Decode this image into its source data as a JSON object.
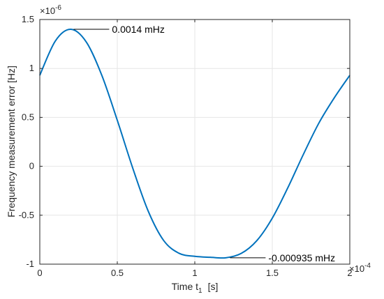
{
  "chart_data": {
    "type": "line",
    "title": "",
    "xlabel": "Time t",
    "xlabel_sub": "1",
    "xlabel_unit": "[s]",
    "ylabel": "Frequency measurement error [Hz]",
    "x_exponent_label": "×10",
    "x_exponent": "-4",
    "y_exponent_label": "×10",
    "y_exponent": "-6",
    "xlim": [
      0,
      2
    ],
    "ylim": [
      -1,
      1.5
    ],
    "x_scale_factor": "1e-4",
    "y_scale_factor": "1e-6",
    "grid": true,
    "x_ticks": [
      0,
      0.5,
      1,
      1.5,
      2
    ],
    "x_tick_labels": [
      "0",
      "0.5",
      "1",
      "1.5",
      "2"
    ],
    "y_ticks": [
      -1,
      -0.5,
      0,
      0.5,
      1,
      1.5
    ],
    "y_tick_labels": [
      "-1",
      "-0.5",
      "0",
      "0.5",
      "1",
      "1.5"
    ],
    "series": [
      {
        "color": "#0072BD",
        "x": [
          0.0,
          0.1,
          0.2,
          0.3,
          0.4,
          0.5,
          0.6,
          0.7,
          0.8,
          0.9,
          1.0,
          1.1,
          1.2,
          1.3,
          1.4,
          1.5,
          1.6,
          1.7,
          1.8,
          1.9,
          2.0
        ],
        "y": [
          0.93,
          1.28,
          1.4,
          1.27,
          0.93,
          0.47,
          -0.02,
          -0.46,
          -0.76,
          -0.89,
          -0.92,
          -0.93,
          -0.935,
          -0.89,
          -0.76,
          -0.53,
          -0.22,
          0.12,
          0.44,
          0.7,
          0.93
        ]
      }
    ],
    "annotations": [
      {
        "text": "0.0014 mHz",
        "x": 0.2,
        "y": 1.4
      },
      {
        "text": "-0.000935 mHz",
        "x": 1.2,
        "y": -0.935
      }
    ]
  }
}
